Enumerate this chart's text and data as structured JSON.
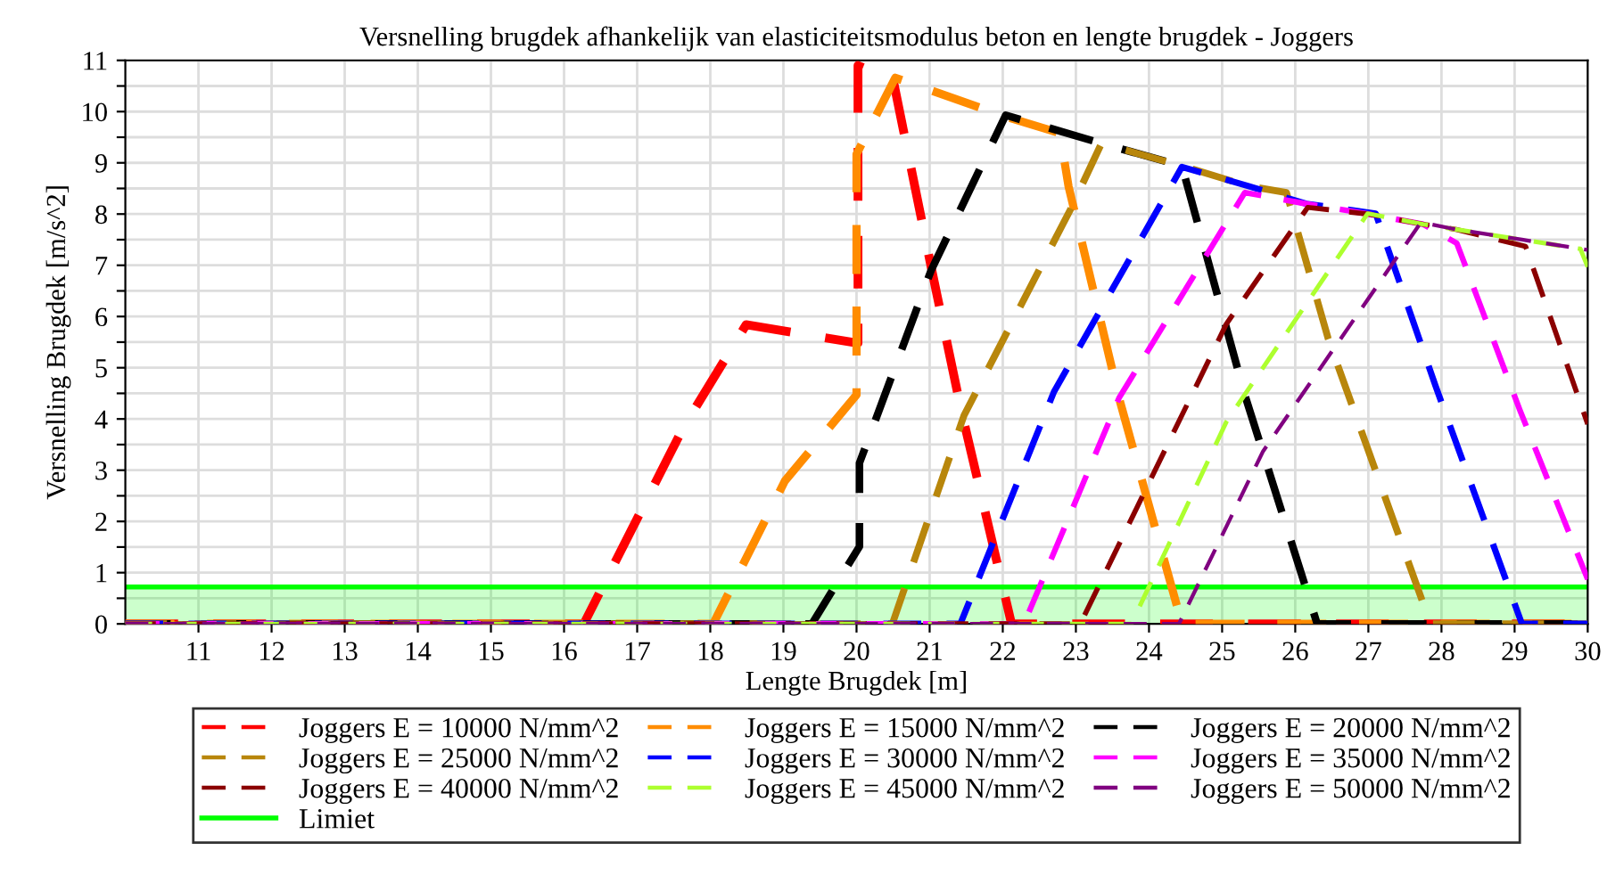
{
  "chart_data": {
    "type": "line",
    "title": "Versnelling brugdek afhankelijk van elasticiteitsmodulus beton en lengte brugdek - Joggers",
    "xlabel": "Lengte Brugdek [m]",
    "ylabel": "Versnelling Brugdek [m/s^2]",
    "xlim": [
      10,
      30
    ],
    "xticks": [
      11,
      12,
      13,
      14,
      15,
      16,
      17,
      18,
      19,
      20,
      21,
      22,
      23,
      24,
      25,
      26,
      27,
      28,
      29,
      30
    ],
    "ylim": [
      0,
      11
    ],
    "yticks": [
      0,
      {
        "value": 0.5,
        "label": null
      },
      1,
      {
        "value": 1.5,
        "label": null
      },
      2,
      {
        "value": 2.5,
        "label": null
      },
      3,
      {
        "value": 3.5,
        "label": null
      },
      4,
      {
        "value": 4.5,
        "label": null
      },
      5,
      {
        "value": 5.5,
        "label": null
      },
      6,
      {
        "value": 6.5,
        "label": null
      },
      7,
      {
        "value": 7.5,
        "label": null
      },
      8,
      {
        "value": 8.5,
        "label": null
      },
      9,
      {
        "value": 9.5,
        "label": null
      },
      10,
      {
        "value": 10.5,
        "label": null
      },
      11
    ],
    "grid": true,
    "legend": "bottom",
    "line_style": "dashed",
    "series": [
      {
        "name": "Joggers E = 10000 N/mm^2",
        "color": "#ff0000",
        "x": [
          10,
          16.27,
          17.63,
          18.49,
          20.02,
          20.02,
          20.5,
          21.02,
          21.43,
          22.12,
          30
        ],
        "values": [
          0,
          0,
          3.83,
          5.84,
          5.48,
          10.9,
          10.63,
          6.97,
          4.18,
          0,
          0
        ]
      },
      {
        "name": "Joggers E = 15000 N/mm^2",
        "color": "#ff8c00",
        "x": [
          10,
          18.04,
          19.02,
          20.0,
          20.0,
          20.53,
          22.0,
          22.78,
          22.9,
          23.59,
          24.45,
          30
        ],
        "values": [
          0,
          0,
          2.79,
          4.47,
          9.17,
          10.66,
          9.92,
          9.58,
          8.54,
          4.41,
          0,
          0
        ]
      },
      {
        "name": "Joggers E = 20000 N/mm^2",
        "color": "#000000",
        "x": [
          10,
          19.39,
          20.04,
          20.04,
          21.02,
          22.04,
          23.35,
          24.45,
          25.31,
          26.3,
          30
        ],
        "values": [
          0,
          0,
          1.51,
          3.14,
          6.9,
          9.93,
          9.38,
          8.94,
          4.47,
          0,
          0
        ]
      },
      {
        "name": "Joggers E = 25000 N/mm^2",
        "color": "#b8860b",
        "x": [
          10,
          20.49,
          21.47,
          22.94,
          23.35,
          24.45,
          25.35,
          25.88,
          26.45,
          27.85,
          30
        ],
        "values": [
          0,
          0,
          4.07,
          8.13,
          9.38,
          8.94,
          8.55,
          8.42,
          5.57,
          0,
          0
        ]
      },
      {
        "name": "Joggers E = 30000 N/mm^2",
        "color": "#0000ff",
        "x": [
          10,
          21.42,
          22.7,
          24.45,
          25.35,
          26.15,
          27.1,
          27.92,
          29.1,
          30
        ],
        "values": [
          0,
          0,
          4.53,
          8.92,
          8.55,
          8.2,
          8.01,
          4.64,
          0,
          0
        ]
      },
      {
        "name": "Joggers E = 35000 N/mm^2",
        "color": "#ff00ff",
        "x": [
          10,
          22.29,
          23.59,
          25.31,
          26.15,
          27.0,
          27.75,
          28.21,
          29.07,
          30
        ],
        "values": [
          0,
          0,
          4.41,
          8.42,
          8.2,
          8.0,
          7.8,
          7.43,
          4.18,
          0.87
        ]
      },
      {
        "name": "Joggers E = 40000 N/mm^2",
        "color": "#8b0000",
        "x": [
          10,
          23.06,
          25.06,
          26.17,
          27.0,
          27.75,
          28.2,
          29.15,
          30
        ],
        "values": [
          0,
          0,
          5.86,
          8.13,
          8.0,
          7.8,
          7.7,
          7.37,
          3.9
        ]
      },
      {
        "name": "Joggers E = 45000 N/mm^2",
        "color": "#adff2f",
        "x": [
          10,
          23.76,
          25.06,
          26.99,
          27.75,
          28.2,
          29.1,
          29.9,
          30
        ],
        "values": [
          0,
          0,
          3.95,
          8.01,
          7.8,
          7.7,
          7.5,
          7.32,
          6.97
        ]
      },
      {
        "name": "Joggers E = 50000 N/mm^2",
        "color": "#800080",
        "x": [
          10,
          24.41,
          25.56,
          27.72,
          28.2,
          29.1,
          30
        ],
        "values": [
          0,
          0,
          3.37,
          7.84,
          7.7,
          7.5,
          7.3
        ]
      },
      {
        "name": "Limiet",
        "type": "area",
        "line_style": "solid",
        "color": "#00ff00",
        "x": [
          10,
          30
        ],
        "values": [
          0.72,
          0.72
        ]
      }
    ]
  }
}
